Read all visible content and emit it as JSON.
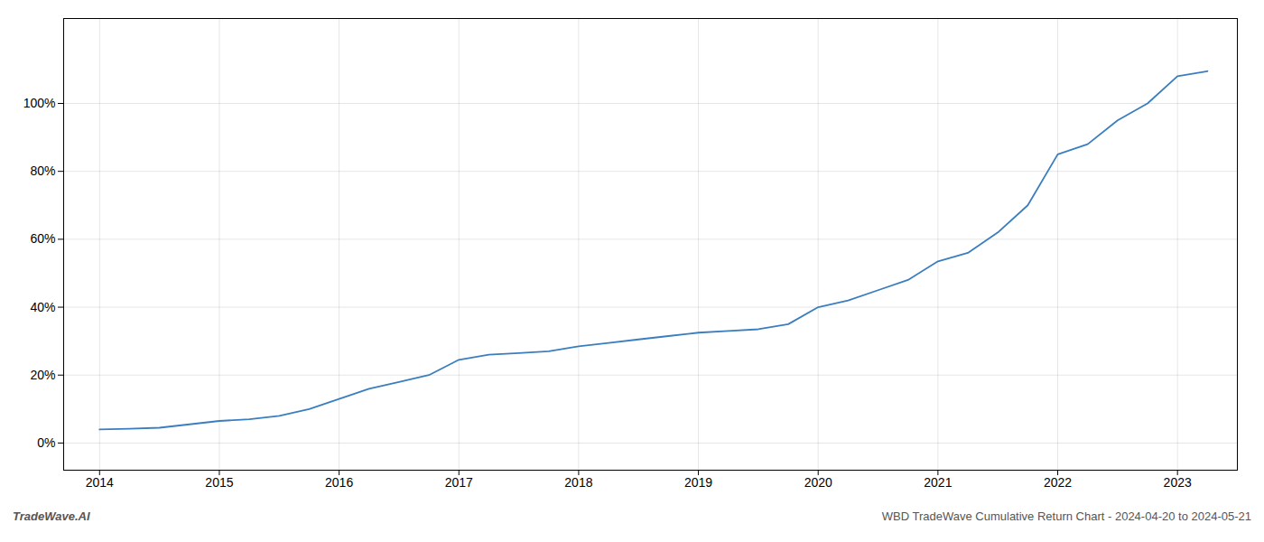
{
  "chart_data": {
    "type": "line",
    "title": "WBD TradeWave Cumulative Return Chart - 2024-04-20 to 2024-05-21",
    "annotations": [
      "TradeWave.AI"
    ],
    "x": [
      2014,
      2014.25,
      2014.5,
      2014.75,
      2015,
      2015.25,
      2015.5,
      2015.75,
      2016,
      2016.25,
      2016.5,
      2016.75,
      2017,
      2017.25,
      2017.5,
      2017.75,
      2018,
      2018.25,
      2018.5,
      2018.75,
      2019,
      2019.25,
      2019.5,
      2019.75,
      2020,
      2020.25,
      2020.5,
      2020.75,
      2021,
      2021.25,
      2021.5,
      2021.75,
      2022,
      2022.25,
      2022.5,
      2022.75,
      2023,
      2023.25
    ],
    "values": [
      4.0,
      4.2,
      4.5,
      5.5,
      6.5,
      7.0,
      8.0,
      10.0,
      13.0,
      16.0,
      18.0,
      20.0,
      24.5,
      26.0,
      26.5,
      27.0,
      28.5,
      29.5,
      30.5,
      31.5,
      32.5,
      33.0,
      33.5,
      35.0,
      40.0,
      42.0,
      45.0,
      48.0,
      53.5,
      56.0,
      62.0,
      70.0,
      85.0,
      88.0,
      95.0,
      100.0,
      108.0,
      109.5
    ],
    "color": "#3a7ebf",
    "xlim": [
      2013.7,
      2023.5
    ],
    "xticks": [
      2014,
      2015,
      2016,
      2017,
      2018,
      2019,
      2020,
      2021,
      2022,
      2023
    ],
    "ylim": [
      -8,
      125
    ],
    "yticks": [
      {
        "value": 0,
        "label": "0%"
      },
      {
        "value": 20,
        "label": "20%"
      },
      {
        "value": 40,
        "label": "40%"
      },
      {
        "value": 60,
        "label": "60%"
      },
      {
        "value": 80,
        "label": "80%"
      },
      {
        "value": 100,
        "label": "100%"
      }
    ],
    "grid": true
  }
}
